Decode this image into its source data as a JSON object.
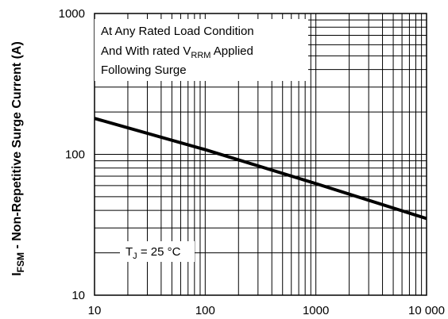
{
  "chart_data": {
    "type": "line",
    "x_scale": "log",
    "y_scale": "log",
    "xlim": [
      10,
      10000
    ],
    "ylim": [
      10,
      1000
    ],
    "x_ticks": [
      "10",
      "100",
      "1000",
      "10 000"
    ],
    "y_ticks": [
      "10",
      "100",
      "1000"
    ],
    "grid": true,
    "ylabel": {
      "main": "I",
      "sub": "FSM",
      "rest": " - Non-Repetitive Surge Current (A)"
    },
    "annotations": {
      "condition_line1": "At Any Rated Load Condition",
      "condition_line2_pre": "And With rated V",
      "condition_line2_sub": "RRM",
      "condition_line2_post": " Applied",
      "condition_line3": "Following Surge",
      "tj_main": "T",
      "tj_sub": "J",
      "tj_rest": " = 25 °C"
    },
    "series": [
      {
        "x": [
          10,
          100,
          1000,
          10000
        ],
        "y": [
          180,
          108,
          62,
          35
        ]
      }
    ]
  }
}
